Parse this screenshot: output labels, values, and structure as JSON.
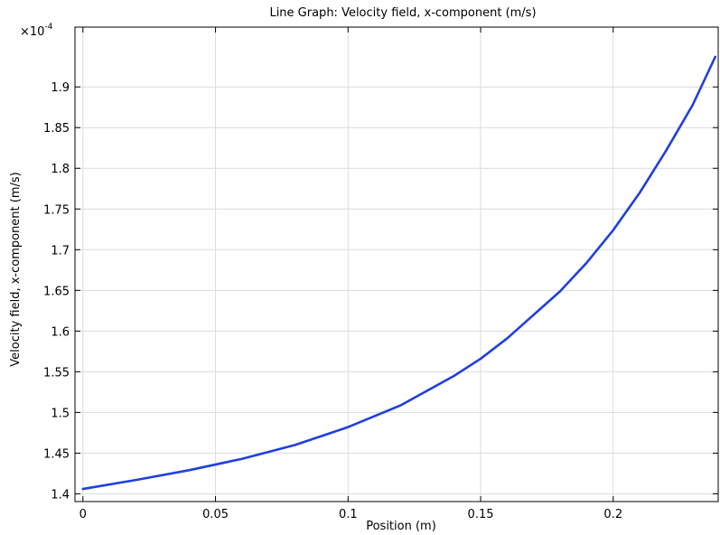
{
  "chart_data": {
    "type": "line",
    "title": "Line Graph: Velocity field, x-component (m/s)",
    "xlabel": "Position (m)",
    "ylabel": "Velocity field, x-component (m/s)",
    "y_multiplier_base": "×10",
    "y_multiplier_exp": "-4",
    "xlim": [
      -0.003,
      0.2396
    ],
    "ylim": [
      1.3905,
      1.9735
    ],
    "xticks": [
      {
        "value": 0,
        "label": "0"
      },
      {
        "value": 0.05,
        "label": "0.05"
      },
      {
        "value": 0.1,
        "label": "0.1"
      },
      {
        "value": 0.15,
        "label": "0.15"
      },
      {
        "value": 0.2,
        "label": "0.2"
      }
    ],
    "yticks": [
      {
        "value": 1.4,
        "label": "1.4"
      },
      {
        "value": 1.45,
        "label": "1.45"
      },
      {
        "value": 1.5,
        "label": "1.5"
      },
      {
        "value": 1.55,
        "label": "1.55"
      },
      {
        "value": 1.6,
        "label": "1.6"
      },
      {
        "value": 1.65,
        "label": "1.65"
      },
      {
        "value": 1.7,
        "label": "1.7"
      },
      {
        "value": 1.75,
        "label": "1.75"
      },
      {
        "value": 1.8,
        "label": "1.8"
      },
      {
        "value": 1.85,
        "label": "1.85"
      },
      {
        "value": 1.9,
        "label": "1.9"
      }
    ],
    "grid": true,
    "series": [
      {
        "color": "#1f3fe0",
        "x": [
          0,
          0.02,
          0.04,
          0.06,
          0.08,
          0.1,
          0.12,
          0.14,
          0.15,
          0.16,
          0.18,
          0.19,
          0.2,
          0.21,
          0.22,
          0.23,
          0.2385
        ],
        "y": [
          1.406,
          1.417,
          1.429,
          1.443,
          1.46,
          1.482,
          1.509,
          1.545,
          1.566,
          1.591,
          1.649,
          1.684,
          1.724,
          1.77,
          1.822,
          1.878,
          1.937
        ]
      }
    ]
  }
}
